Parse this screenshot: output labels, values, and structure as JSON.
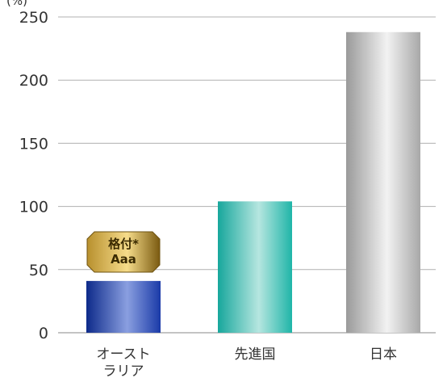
{
  "chart_data": {
    "type": "bar",
    "title": "",
    "xlabel": "",
    "ylabel": "(%)",
    "ylim": [
      0,
      250
    ],
    "yticks": [
      0,
      50,
      100,
      150,
      200,
      250
    ],
    "grid": true,
    "categories": [
      [
        "オースト",
        "ラリア"
      ],
      [
        "先進国"
      ],
      [
        "日本"
      ]
    ],
    "values": [
      41,
      104,
      238
    ],
    "bar_colors": [
      [
        "#0d2a8a",
        "#8a9fe0",
        "#1a3aa8"
      ],
      [
        "#17a79c",
        "#b6e6e0",
        "#1fb5a8"
      ],
      [
        "#9a9a9a",
        "#f2f2f2",
        "#a8a8a8"
      ]
    ],
    "annotation": {
      "category_index": 0,
      "lines": [
        "格付*",
        "Aaa"
      ],
      "colors": [
        "#7a5a10",
        "#f6dc8a",
        "#b8902e"
      ]
    }
  }
}
